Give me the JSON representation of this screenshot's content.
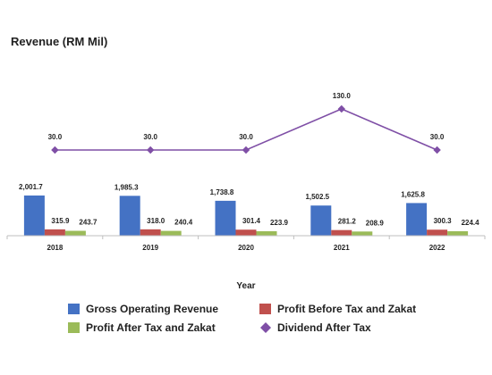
{
  "chart_data": {
    "type": "bar",
    "title": "Revenue (RM Mil)",
    "xlabel": "Year",
    "ylabel": "",
    "categories": [
      "2018",
      "2019",
      "2020",
      "2021",
      "2022"
    ],
    "series": [
      {
        "name": "Gross Operating Revenue",
        "type": "bar",
        "color": "#4472C4",
        "values": [
          2001.7,
          1985.3,
          1738.8,
          1502.5,
          1625.8
        ],
        "labels": [
          "2,001.7",
          "1,985.3",
          "1,738.8",
          "1,502.5",
          "1,625.8"
        ]
      },
      {
        "name": "Profit Before Tax and Zakat",
        "type": "bar",
        "color": "#C0504D",
        "values": [
          315.9,
          318.0,
          301.4,
          281.2,
          300.3
        ],
        "labels": [
          "315.9",
          "318.0",
          "301.4",
          "281.2",
          "300.3"
        ]
      },
      {
        "name": "Profit After Tax and Zakat",
        "type": "bar",
        "color": "#9BBB59",
        "values": [
          243.7,
          240.4,
          223.9,
          208.9,
          224.4
        ],
        "labels": [
          "243.7",
          "240.4",
          "223.9",
          "208.9",
          "224.4"
        ]
      },
      {
        "name": "Dividend After Tax",
        "type": "line",
        "color": "#7F4FA6",
        "values": [
          30.0,
          30.0,
          30.0,
          130.0,
          30.0
        ],
        "labels": [
          "30.0",
          "30.0",
          "30.0",
          "130.0",
          "30.0"
        ]
      }
    ],
    "legend_position": "bottom",
    "grid": false
  }
}
